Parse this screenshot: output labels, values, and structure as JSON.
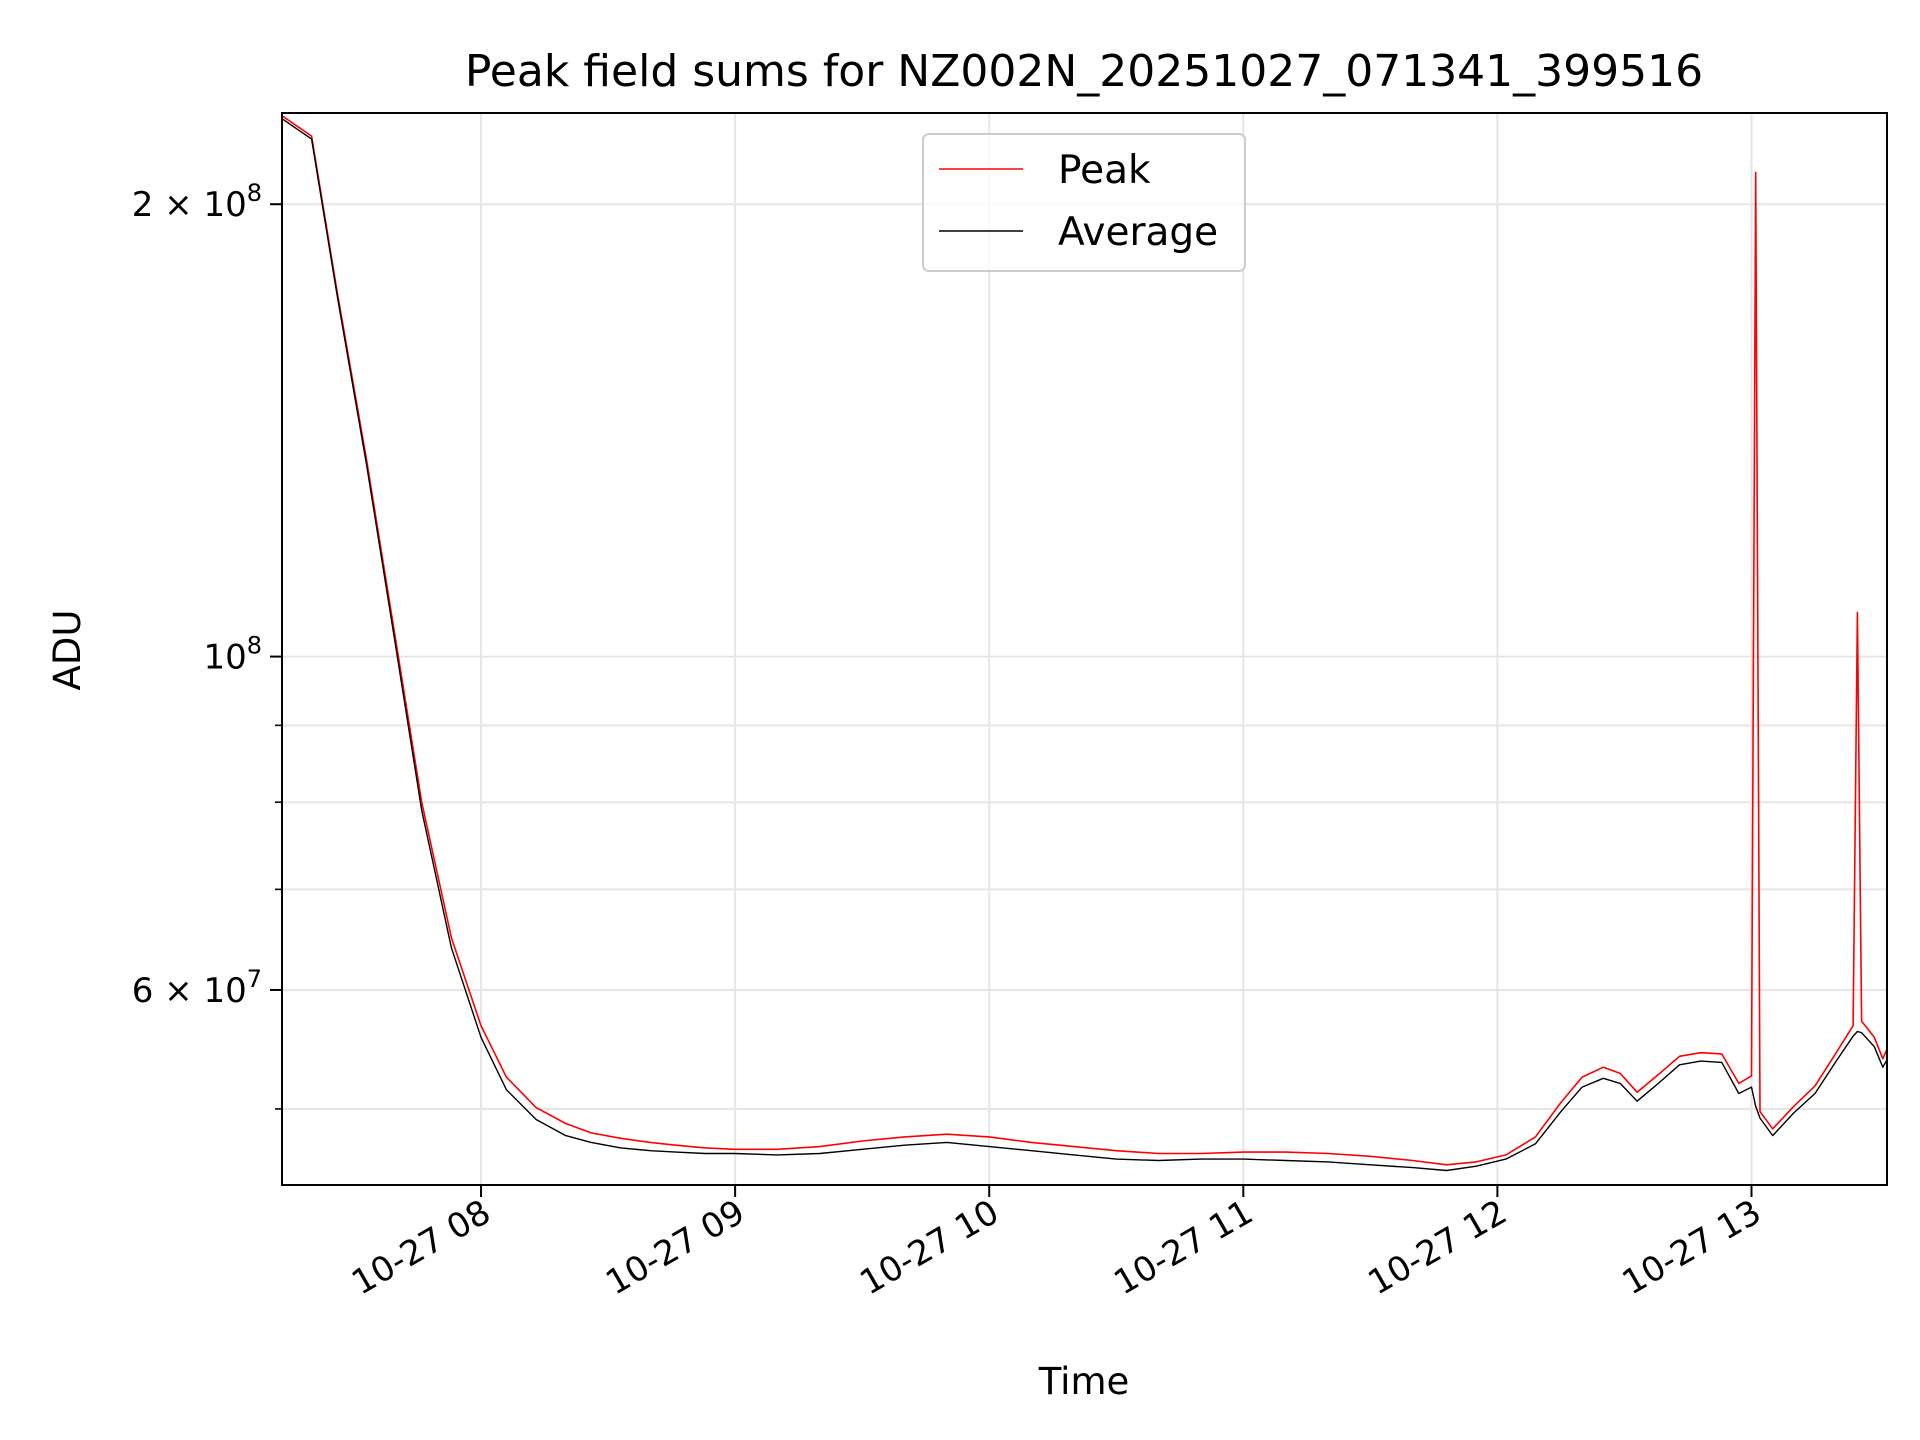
{
  "chart_data": {
    "type": "line",
    "title": "Peak field sums for NZ002N_20251027_071341_399516",
    "xlabel": "Time",
    "ylabel": "ADU",
    "yscale": "log",
    "grid": true,
    "legend_position": "upper center",
    "xlim": [
      "2025-10-27 07:13",
      "2025-10-27 13:32"
    ],
    "ylim": [
      44500000,
      230000000
    ],
    "x_ticks": [
      "10-27 08",
      "10-27 09",
      "10-27 10",
      "10-27 11",
      "10-27 12",
      "10-27 13"
    ],
    "y_tick_labels": [
      {
        "value": 200000000,
        "mantissa": "2",
        "exponent": "8"
      },
      {
        "value": 100000000,
        "mantissa": "",
        "exponent": "8"
      },
      {
        "value": 60000000,
        "mantissa": "6",
        "exponent": "7"
      }
    ],
    "series": [
      {
        "name": "Peak",
        "color": "#ff0000",
        "points": [
          [
            "07:13",
            229000000
          ],
          [
            "07:20",
            222000000
          ],
          [
            "07:26",
            175000000
          ],
          [
            "07:33",
            135000000
          ],
          [
            "07:40",
            102000000
          ],
          [
            "07:46",
            80000000
          ],
          [
            "07:53",
            65000000
          ],
          [
            "08:00",
            56800000
          ],
          [
            "08:06",
            52500000
          ],
          [
            "08:13",
            50100000
          ],
          [
            "08:20",
            48900000
          ],
          [
            "08:26",
            48200000
          ],
          [
            "08:33",
            47800000
          ],
          [
            "08:40",
            47500000
          ],
          [
            "08:46",
            47300000
          ],
          [
            "08:53",
            47100000
          ],
          [
            "09:00",
            47000000
          ],
          [
            "09:10",
            47000000
          ],
          [
            "09:20",
            47200000
          ],
          [
            "09:30",
            47600000
          ],
          [
            "09:40",
            47900000
          ],
          [
            "09:50",
            48100000
          ],
          [
            "10:00",
            47900000
          ],
          [
            "10:10",
            47500000
          ],
          [
            "10:20",
            47200000
          ],
          [
            "10:30",
            46900000
          ],
          [
            "10:40",
            46700000
          ],
          [
            "10:50",
            46700000
          ],
          [
            "11:00",
            46800000
          ],
          [
            "11:10",
            46800000
          ],
          [
            "11:20",
            46700000
          ],
          [
            "11:30",
            46500000
          ],
          [
            "11:40",
            46200000
          ],
          [
            "11:48",
            45900000
          ],
          [
            "11:55",
            46100000
          ],
          [
            "12:02",
            46600000
          ],
          [
            "12:09",
            47900000
          ],
          [
            "12:15",
            50500000
          ],
          [
            "12:20",
            52500000
          ],
          [
            "12:25",
            53300000
          ],
          [
            "12:29",
            52800000
          ],
          [
            "12:33",
            51300000
          ],
          [
            "12:38",
            52700000
          ],
          [
            "12:43",
            54200000
          ],
          [
            "12:48",
            54500000
          ],
          [
            "12:53",
            54400000
          ],
          [
            "12:57",
            52000000
          ],
          [
            "13:00",
            52600000
          ],
          [
            "13:01",
            210000000
          ],
          [
            "13:02",
            49800000
          ],
          [
            "13:05",
            48500000
          ],
          [
            "13:10",
            50200000
          ],
          [
            "13:15",
            51800000
          ],
          [
            "13:20",
            54500000
          ],
          [
            "13:24",
            56800000
          ],
          [
            "13:25",
            107000000
          ],
          [
            "13:26",
            57200000
          ],
          [
            "13:29",
            55800000
          ],
          [
            "13:31",
            54000000
          ],
          [
            "13:32",
            54800000
          ]
        ]
      },
      {
        "name": "Average",
        "color": "#000000",
        "points": [
          [
            "07:13",
            228000000
          ],
          [
            "07:20",
            221000000
          ],
          [
            "07:26",
            174000000
          ],
          [
            "07:33",
            134000000
          ],
          [
            "07:40",
            101000000
          ],
          [
            "07:46",
            79000000
          ],
          [
            "07:53",
            64000000
          ],
          [
            "08:00",
            55800000
          ],
          [
            "08:06",
            51500000
          ],
          [
            "08:13",
            49200000
          ],
          [
            "08:20",
            48000000
          ],
          [
            "08:26",
            47500000
          ],
          [
            "08:33",
            47100000
          ],
          [
            "08:40",
            46900000
          ],
          [
            "08:46",
            46800000
          ],
          [
            "08:53",
            46700000
          ],
          [
            "09:00",
            46700000
          ],
          [
            "09:10",
            46600000
          ],
          [
            "09:20",
            46700000
          ],
          [
            "09:30",
            47000000
          ],
          [
            "09:40",
            47300000
          ],
          [
            "09:50",
            47500000
          ],
          [
            "10:00",
            47200000
          ],
          [
            "10:10",
            46900000
          ],
          [
            "10:20",
            46600000
          ],
          [
            "10:30",
            46300000
          ],
          [
            "10:40",
            46200000
          ],
          [
            "10:50",
            46300000
          ],
          [
            "11:00",
            46300000
          ],
          [
            "11:10",
            46200000
          ],
          [
            "11:20",
            46100000
          ],
          [
            "11:30",
            45900000
          ],
          [
            "11:40",
            45700000
          ],
          [
            "11:48",
            45500000
          ],
          [
            "11:55",
            45800000
          ],
          [
            "12:02",
            46300000
          ],
          [
            "12:09",
            47400000
          ],
          [
            "12:15",
            49800000
          ],
          [
            "12:20",
            51700000
          ],
          [
            "12:25",
            52400000
          ],
          [
            "12:29",
            52000000
          ],
          [
            "12:33",
            50600000
          ],
          [
            "12:38",
            52000000
          ],
          [
            "12:43",
            53500000
          ],
          [
            "12:48",
            53800000
          ],
          [
            "12:53",
            53700000
          ],
          [
            "12:57",
            51200000
          ],
          [
            "13:00",
            51700000
          ],
          [
            "13:01",
            50200000
          ],
          [
            "13:02",
            49300000
          ],
          [
            "13:05",
            48000000
          ],
          [
            "13:10",
            49700000
          ],
          [
            "13:15",
            51200000
          ],
          [
            "13:20",
            53800000
          ],
          [
            "13:24",
            55900000
          ],
          [
            "13:25",
            56300000
          ],
          [
            "13:26",
            56200000
          ],
          [
            "13:29",
            55000000
          ],
          [
            "13:31",
            53300000
          ],
          [
            "13:32",
            53900000
          ]
        ]
      }
    ]
  }
}
